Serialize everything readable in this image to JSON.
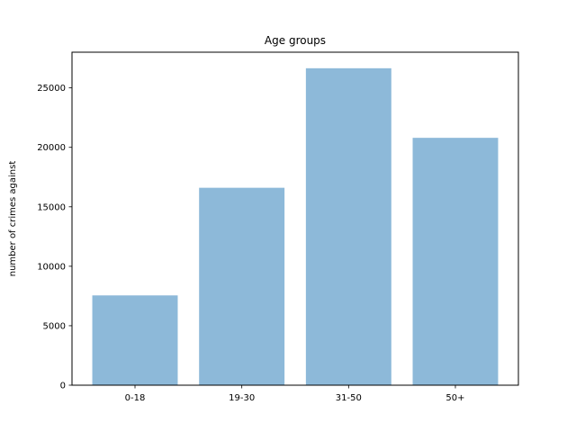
{
  "chart_data": {
    "type": "bar",
    "title": "Age groups",
    "xlabel": "",
    "ylabel": "number of crimes against",
    "categories": [
      "0-18",
      "19-30",
      "31-50",
      "50+"
    ],
    "values": [
      7550,
      16600,
      26650,
      20800
    ],
    "ylim": [
      0,
      28000
    ],
    "yticks": [
      0,
      5000,
      10000,
      15000,
      20000,
      25000
    ],
    "grid": false,
    "bar_color": "#8db9d9"
  }
}
